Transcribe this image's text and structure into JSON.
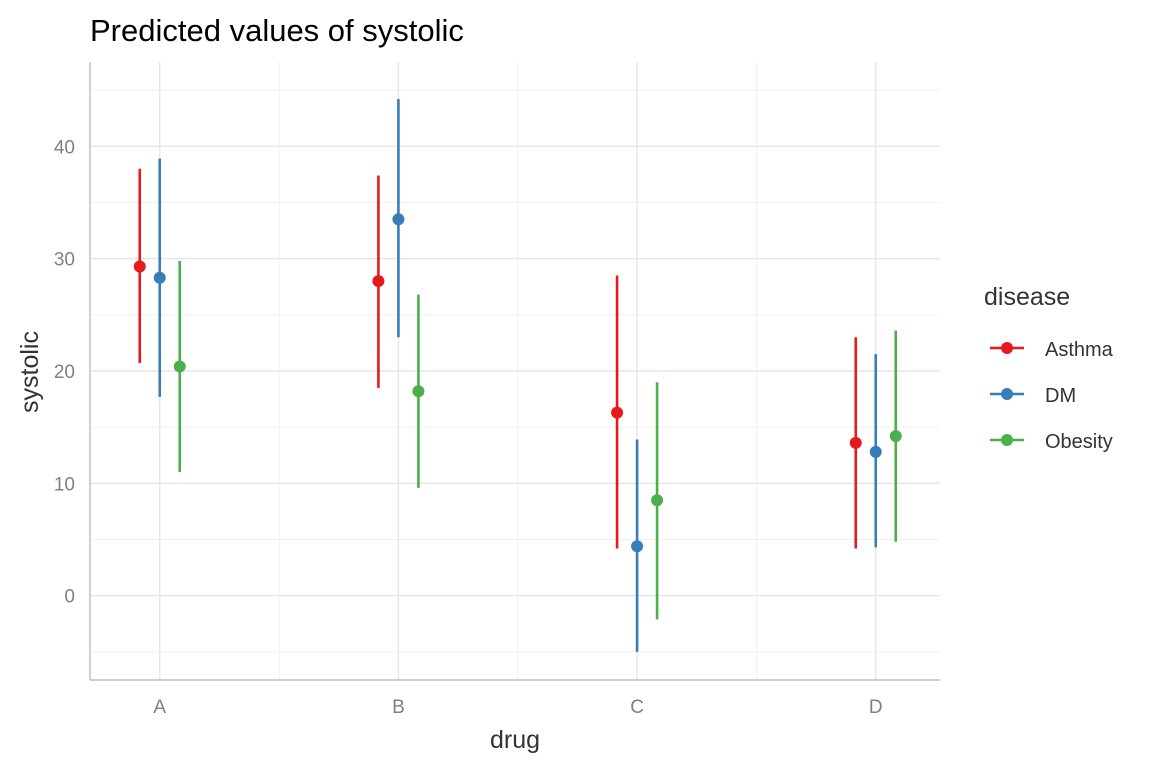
{
  "chart_data": {
    "type": "scatter",
    "title": "Predicted values of systolic",
    "xlabel": "drug",
    "ylabel": "systolic",
    "categories": [
      "A",
      "B",
      "C",
      "D"
    ],
    "ylim": [
      -7.5,
      47.5
    ],
    "yticks": [
      0,
      10,
      20,
      30,
      40
    ],
    "grid": true,
    "legend": {
      "title": "disease",
      "position": "right"
    },
    "series": [
      {
        "name": "Asthma",
        "color": "#E41A1C",
        "values": [
          29.3,
          28.0,
          16.3,
          13.6
        ],
        "lower": [
          20.7,
          18.5,
          4.2,
          4.2
        ],
        "upper": [
          38.0,
          37.4,
          28.5,
          23.0
        ]
      },
      {
        "name": "DM",
        "color": "#377EB8",
        "values": [
          28.3,
          33.5,
          4.4,
          12.8
        ],
        "lower": [
          17.7,
          23.0,
          -5.0,
          4.3
        ],
        "upper": [
          38.9,
          44.2,
          13.9,
          21.5
        ]
      },
      {
        "name": "Obesity",
        "color": "#4DAF4A",
        "values": [
          20.4,
          18.2,
          8.5,
          14.2
        ],
        "lower": [
          11.0,
          9.6,
          -2.1,
          4.8
        ],
        "upper": [
          29.8,
          26.8,
          19.0,
          23.6
        ]
      }
    ]
  }
}
